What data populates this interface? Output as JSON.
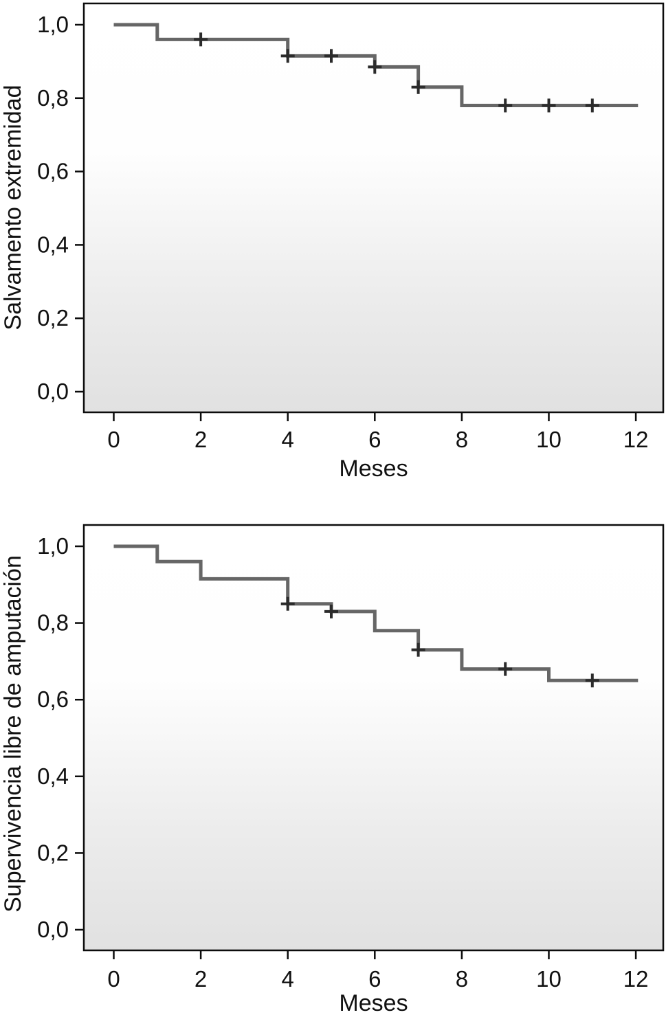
{
  "page": {
    "background": "#ffffff",
    "description_labels": {
      "months_axis": "Meses"
    }
  },
  "style": {
    "curve_color": "#666666",
    "censor_color": "#2b2b2b",
    "frame_color": "#0c0c0c",
    "text_color": "#111111",
    "plot_bg_gradient": [
      "#ffffff",
      "#fefefe",
      "#ececec",
      "#e1e1e1"
    ]
  },
  "chart_data": [
    {
      "type": "line",
      "subtype": "kaplan_meier_step",
      "title": "",
      "xlabel": "Meses",
      "ylabel": "Salvamento extremidad",
      "xlim": [
        0,
        12.6
      ],
      "ylim": [
        0.0,
        1.0
      ],
      "grid": false,
      "legend": false,
      "xticks": [
        0,
        2,
        4,
        6,
        8,
        10,
        12
      ],
      "xtick_labels": [
        "0",
        "2",
        "4",
        "6",
        "8",
        "10",
        "12"
      ],
      "yticks": [
        1.0,
        0.8,
        0.6,
        0.4,
        0.2,
        0.0
      ],
      "ytick_labels": [
        "1,0",
        "0,8",
        "0,6",
        "0,4",
        "0,2",
        "0,0"
      ],
      "steps": [
        {
          "x_start": 0,
          "x_end": 1,
          "y": 1.0
        },
        {
          "x_start": 1,
          "x_end": 4,
          "y": 0.96
        },
        {
          "x_start": 4,
          "x_end": 6,
          "y": 0.915
        },
        {
          "x_start": 6,
          "x_end": 7,
          "y": 0.885
        },
        {
          "x_start": 7,
          "x_end": 8,
          "y": 0.83
        },
        {
          "x_start": 8,
          "x_end": 12.05,
          "y": 0.78
        }
      ],
      "censor_marks": [
        {
          "x": 2,
          "y": 0.96
        },
        {
          "x": 4,
          "y": 0.915
        },
        {
          "x": 5,
          "y": 0.915
        },
        {
          "x": 6,
          "y": 0.885
        },
        {
          "x": 7,
          "y": 0.83
        },
        {
          "x": 9,
          "y": 0.78
        },
        {
          "x": 10,
          "y": 0.78
        },
        {
          "x": 11,
          "y": 0.78
        }
      ]
    },
    {
      "type": "line",
      "subtype": "kaplan_meier_step",
      "title": "",
      "xlabel": "Meses",
      "ylabel": "Supervivencia libre de amputación",
      "xlim": [
        0,
        12.6
      ],
      "ylim": [
        0.0,
        1.0
      ],
      "grid": false,
      "legend": false,
      "xticks": [
        0,
        2,
        4,
        6,
        8,
        10,
        12
      ],
      "xtick_labels": [
        "0",
        "2",
        "4",
        "6",
        "8",
        "10",
        "12"
      ],
      "yticks": [
        1.0,
        0.8,
        0.6,
        0.4,
        0.2,
        0.0
      ],
      "ytick_labels": [
        "1,0",
        "0,8",
        "0,6",
        "0,4",
        "0,2",
        "0,0"
      ],
      "steps": [
        {
          "x_start": 0,
          "x_end": 1,
          "y": 1.0
        },
        {
          "x_start": 1,
          "x_end": 2,
          "y": 0.96
        },
        {
          "x_start": 2,
          "x_end": 4,
          "y": 0.915
        },
        {
          "x_start": 4,
          "x_end": 5,
          "y": 0.85
        },
        {
          "x_start": 5,
          "x_end": 6,
          "y": 0.83
        },
        {
          "x_start": 6,
          "x_end": 7,
          "y": 0.78
        },
        {
          "x_start": 7,
          "x_end": 8,
          "y": 0.73
        },
        {
          "x_start": 8,
          "x_end": 10,
          "y": 0.68
        },
        {
          "x_start": 10,
          "x_end": 12.05,
          "y": 0.65
        }
      ],
      "censor_marks": [
        {
          "x": 4,
          "y": 0.85
        },
        {
          "x": 5,
          "y": 0.83
        },
        {
          "x": 7,
          "y": 0.73
        },
        {
          "x": 9,
          "y": 0.68
        },
        {
          "x": 11,
          "y": 0.65
        }
      ]
    }
  ]
}
